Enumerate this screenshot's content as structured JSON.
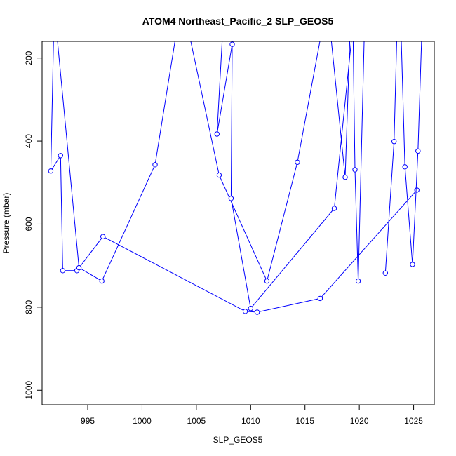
{
  "chart_data": {
    "type": "line",
    "title": "ATOM4 Northeast_Pacific_2 SLP_GEOS5",
    "xlabel": "SLP_GEOS5",
    "ylabel": "Pressure (mbar)",
    "xlim": [
      990.8,
      1026.9
    ],
    "ylim": [
      1035,
      160
    ],
    "y_reversed": true,
    "grid": false,
    "legend": "none",
    "line_color": "#0000ff",
    "x_ticks": [
      995,
      1000,
      1005,
      1010,
      1015,
      1020,
      1025
    ],
    "x_tick_labels": [
      "995",
      "1000",
      "1005",
      "1010",
      "1015",
      "1020",
      "1025"
    ],
    "y_ticks": [
      200,
      400,
      600,
      800,
      1000
    ],
    "y_tick_labels": [
      "200",
      "400",
      "600",
      "800",
      "1000"
    ],
    "series": [
      {
        "points": [
          {
            "x": 991.9,
            "y": 100
          },
          {
            "x": 991.6,
            "y": 472
          },
          {
            "x": 992.5,
            "y": 435
          },
          {
            "x": 992.7,
            "y": 712
          },
          {
            "x": 994.0,
            "y": 712
          },
          {
            "x": 996.4,
            "y": 630
          },
          {
            "x": 1009.5,
            "y": 810
          },
          {
            "x": 1010.6,
            "y": 812
          },
          {
            "x": 1016.4,
            "y": 779
          },
          {
            "x": 1025.3,
            "y": 518
          }
        ]
      },
      {
        "points": [
          {
            "x": 992.0,
            "y": 100
          },
          {
            "x": 994.2,
            "y": 705
          },
          {
            "x": 996.3,
            "y": 737
          },
          {
            "x": 1001.2,
            "y": 457
          },
          {
            "x": 1003.4,
            "y": 100
          }
        ]
      },
      {
        "points": [
          {
            "x": 1004.0,
            "y": 100
          },
          {
            "x": 1007.1,
            "y": 482
          },
          {
            "x": 1011.5,
            "y": 737
          },
          {
            "x": 1014.3,
            "y": 451
          },
          {
            "x": 1016.8,
            "y": 100
          }
        ]
      },
      {
        "points": [
          {
            "x": 1007.5,
            "y": 100
          },
          {
            "x": 1006.9,
            "y": 383
          },
          {
            "x": 1008.3,
            "y": 167
          },
          {
            "x": 1008.2,
            "y": 538
          },
          {
            "x": 1010.0,
            "y": 803
          },
          {
            "x": 1017.7,
            "y": 562
          },
          {
            "x": 1019.5,
            "y": 100
          }
        ]
      },
      {
        "points": [
          {
            "x": 1017.2,
            "y": 100
          },
          {
            "x": 1018.7,
            "y": 487
          },
          {
            "x": 1019.2,
            "y": 100
          }
        ]
      },
      {
        "points": [
          {
            "x": 1019.4,
            "y": 100
          },
          {
            "x": 1019.6,
            "y": 469
          },
          {
            "x": 1019.9,
            "y": 737
          },
          {
            "x": 1020.5,
            "y": 100
          }
        ]
      },
      {
        "points": [
          {
            "x": 1023.5,
            "y": 100
          },
          {
            "x": 1023.2,
            "y": 401
          },
          {
            "x": 1022.4,
            "y": 718
          }
        ]
      },
      {
        "points": [
          {
            "x": 1023.8,
            "y": 100
          },
          {
            "x": 1024.2,
            "y": 462
          },
          {
            "x": 1024.9,
            "y": 697
          },
          {
            "x": 1025.4,
            "y": 424
          },
          {
            "x": 1025.8,
            "y": 100
          }
        ]
      }
    ]
  }
}
